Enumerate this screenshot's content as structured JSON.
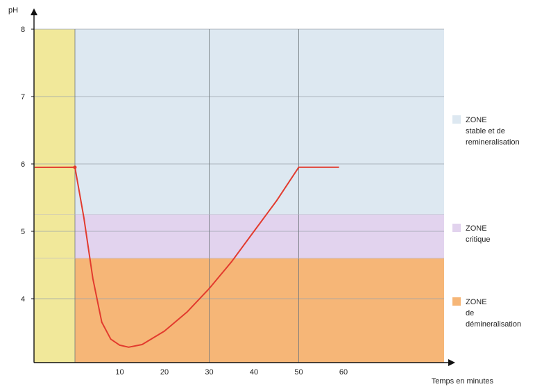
{
  "chart_data": {
    "type": "line",
    "ylabel": "pH",
    "xlabel": "Temps en minutes",
    "xlim": [
      -9,
      72
    ],
    "ylim": [
      3.05,
      8
    ],
    "x_ticks": [
      10,
      20,
      30,
      40,
      50,
      60
    ],
    "y_ticks": [
      4,
      5,
      6,
      7,
      8
    ],
    "grid": true,
    "zones": [
      {
        "y_from": 5.25,
        "y_to": 8,
        "color": "#dde8f1"
      },
      {
        "y_from": 4.6,
        "y_to": 5.25,
        "color": "#e2d3ee"
      },
      {
        "y_from": 3.05,
        "y_to": 4.6,
        "color": "#f6b677"
      }
    ],
    "pre_band": {
      "x_from": -9,
      "x_to": 0,
      "color": "#f1e89a"
    },
    "series": [
      {
        "color": "#e23b2e",
        "points": [
          [
            -9,
            5.95
          ],
          [
            0,
            5.95
          ],
          [
            2,
            5.2
          ],
          [
            4,
            4.3
          ],
          [
            6,
            3.65
          ],
          [
            8,
            3.4
          ],
          [
            10,
            3.31
          ],
          [
            12,
            3.28
          ],
          [
            15,
            3.32
          ],
          [
            20,
            3.52
          ],
          [
            25,
            3.8
          ],
          [
            30,
            4.15
          ],
          [
            35,
            4.55
          ],
          [
            40,
            5.0
          ],
          [
            45,
            5.45
          ],
          [
            50,
            5.95
          ],
          [
            59,
            5.95
          ]
        ]
      }
    ]
  },
  "legend": [
    {
      "label_lines": [
        "ZONE",
        "stable et de",
        "remineralisation"
      ],
      "color": "#dde8f1"
    },
    {
      "label_lines": [
        "ZONE",
        "critique"
      ],
      "color": "#e2d3ee"
    },
    {
      "label_lines": [
        "ZONE",
        "de",
        "démineralisation"
      ],
      "color": "#f6b677"
    }
  ],
  "y_ticks_text": [
    "4",
    "5",
    "6",
    "7",
    "8"
  ],
  "x_ticks_text": [
    "10",
    "20",
    "30",
    "40",
    "50",
    "60"
  ]
}
